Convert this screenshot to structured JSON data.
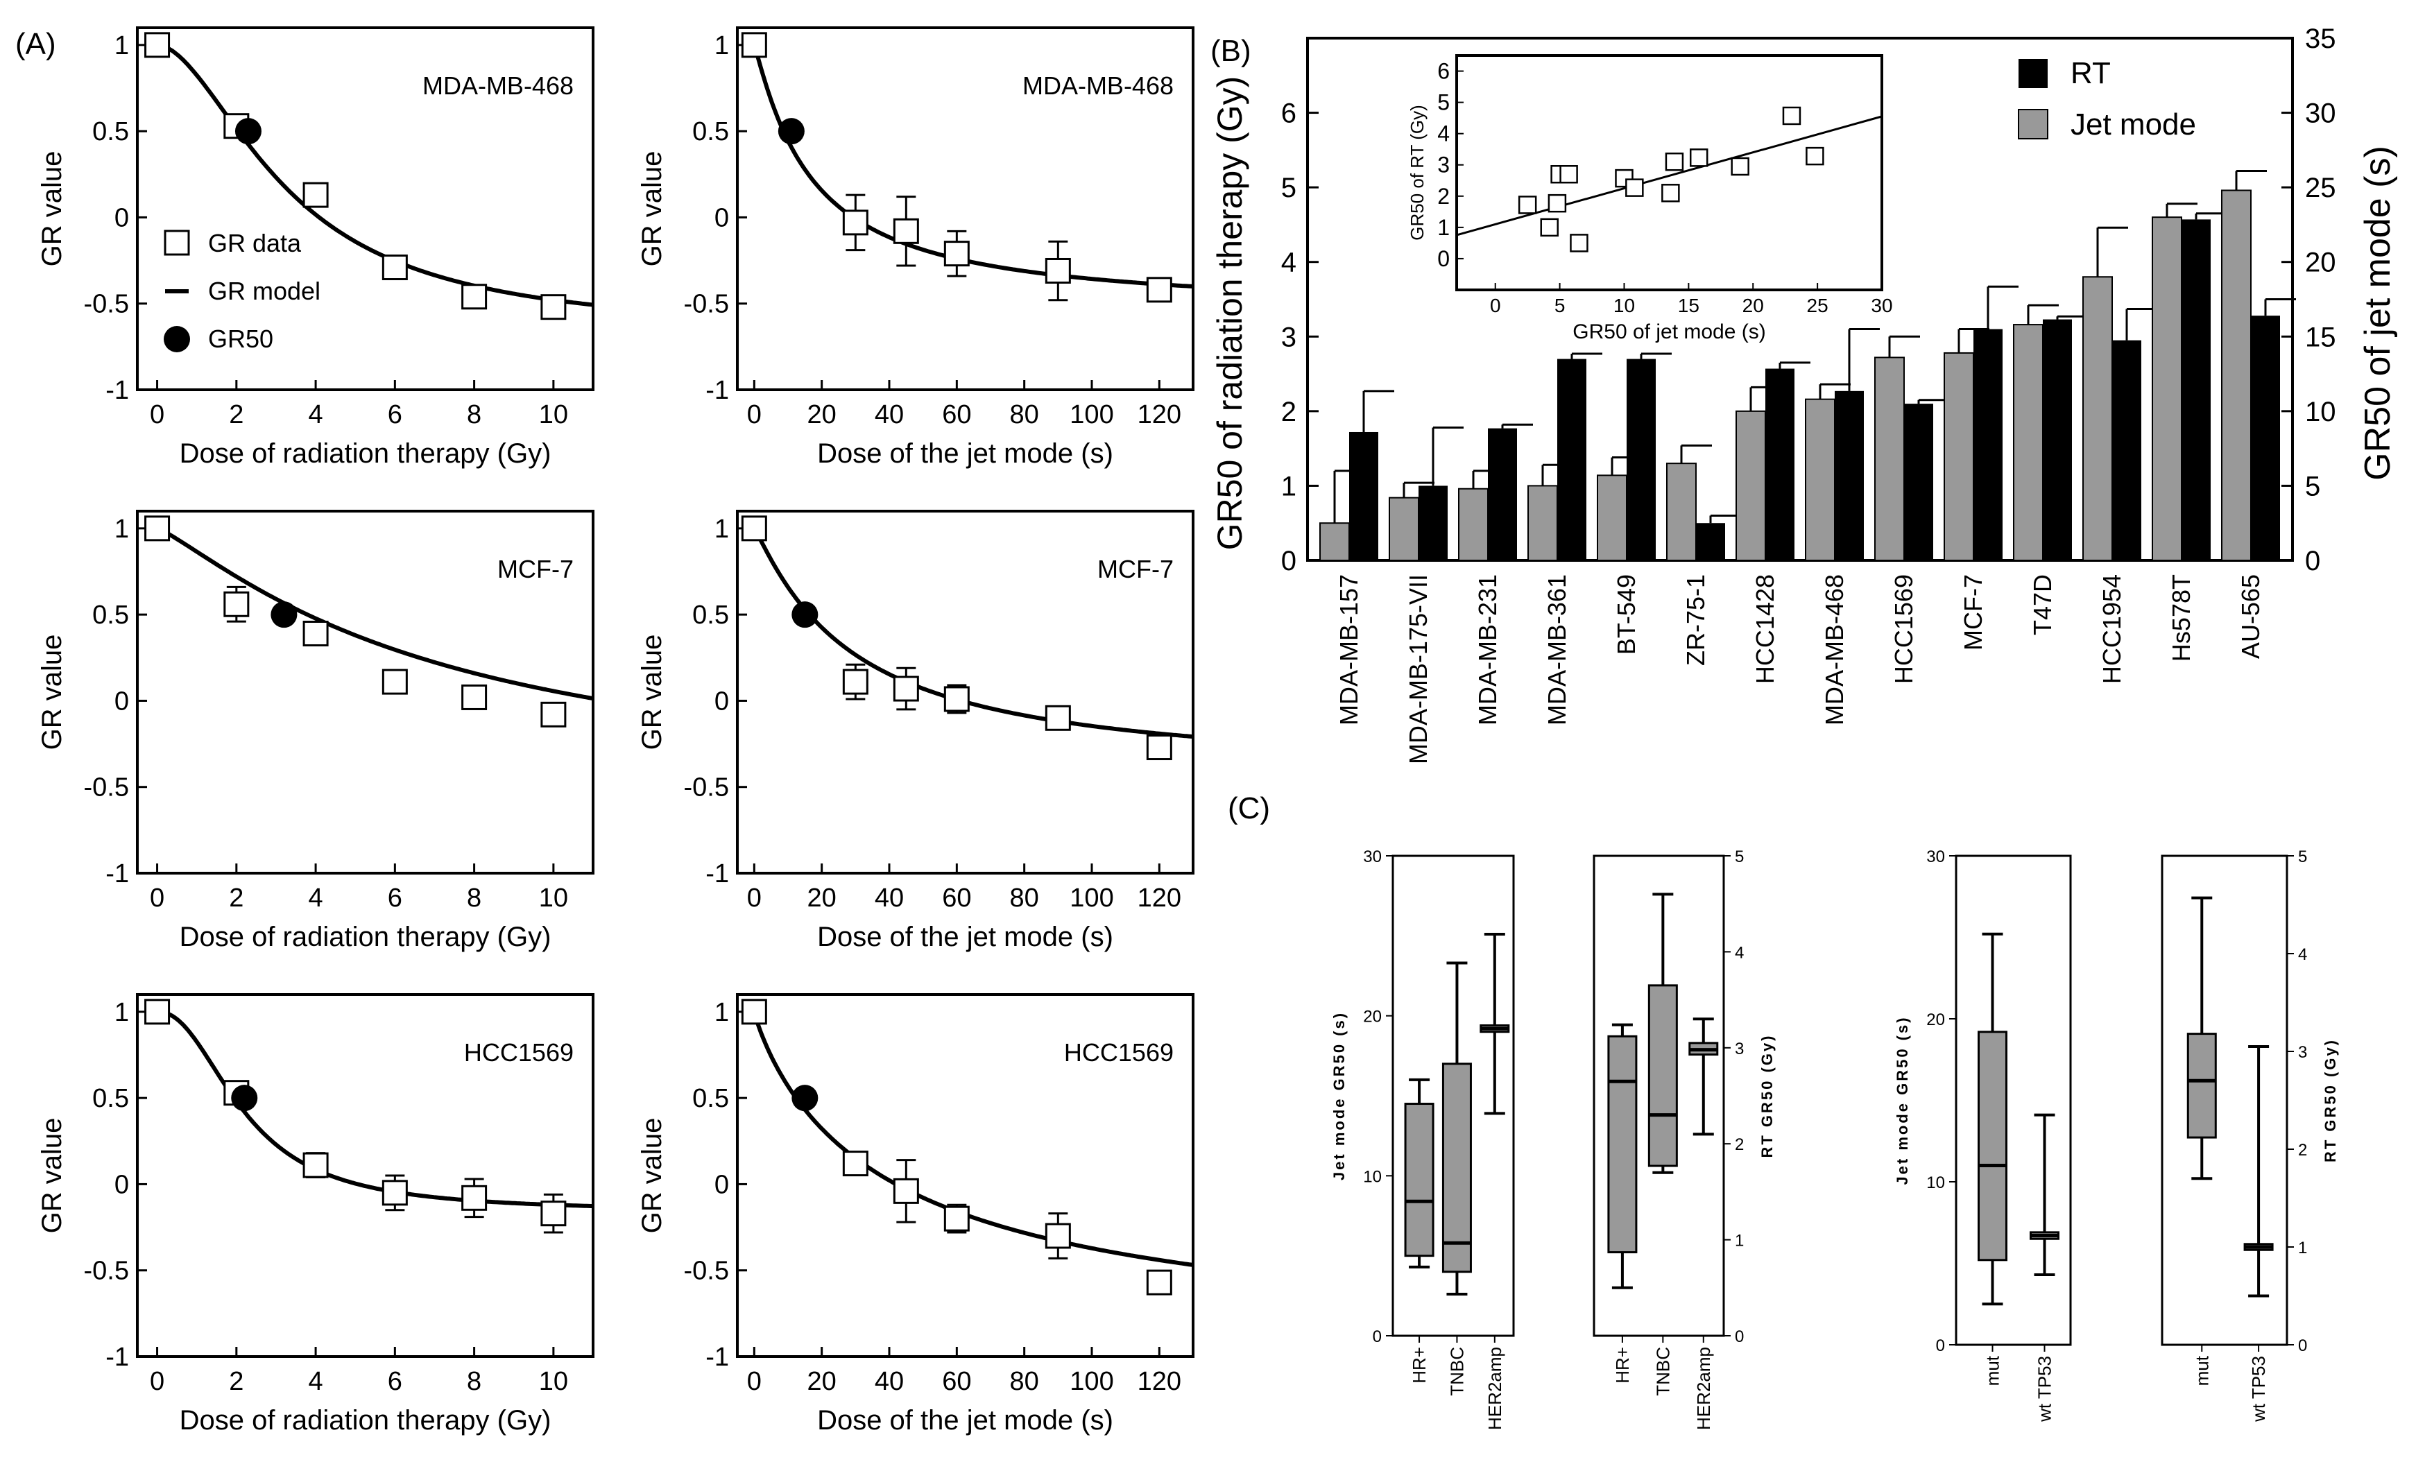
{
  "figure": {
    "panel_labels": [
      "(A)",
      "(B)",
      "(C)"
    ],
    "colors": {
      "blue": "#1f3fe0",
      "green": "#1f9020",
      "orange": "#f08a10",
      "gray": "#999999",
      "black": "#000000"
    }
  },
  "chart_data": [
    {
      "type": "scatter",
      "panel": "A1",
      "annotation": "MDA-MB-468",
      "xlabel": "Dose of radiation therapy (Gy)",
      "ylabel": "GR value",
      "xlim": [
        -0.5,
        11
      ],
      "ylim": [
        -1,
        1.1
      ],
      "xticks": [
        0,
        2,
        4,
        6,
        8,
        10
      ],
      "xtick_labels": [
        "0",
        "2",
        "4",
        "6",
        "8",
        "10"
      ],
      "yticks": [
        -1,
        -0.5,
        0,
        0.5,
        1
      ],
      "ytick_labels": [
        "-1",
        "-0.5",
        "0",
        "0.5",
        "1"
      ],
      "legend": [
        "GR data",
        "GR model",
        "GR50"
      ],
      "points": [
        {
          "x": 0,
          "y": 1.0,
          "err": 0
        },
        {
          "x": 2,
          "y": 0.53,
          "err": 0.06
        },
        {
          "x": 4,
          "y": 0.13,
          "err": 0
        },
        {
          "x": 6,
          "y": -0.29,
          "err": 0
        },
        {
          "x": 8,
          "y": -0.46,
          "err": 0
        },
        {
          "x": 10,
          "y": -0.52,
          "err": 0
        }
      ],
      "gr50": {
        "x": 2.3,
        "y": 0.5
      },
      "curve": {
        "grinf": -0.68,
        "ec50": 3.3,
        "hill": 1.8
      }
    },
    {
      "type": "scatter",
      "panel": "A2",
      "annotation": "MDA-MB-468",
      "xlabel": "Dose of the jet mode (s)",
      "ylabel": "GR value",
      "xlim": [
        -5,
        130
      ],
      "ylim": [
        -1,
        1.1
      ],
      "xticks": [
        0,
        20,
        40,
        60,
        80,
        100,
        120
      ],
      "xtick_labels": [
        "0",
        "20",
        "40",
        "60",
        "80",
        "100",
        "120"
      ],
      "yticks": [
        -1,
        -0.5,
        0,
        0.5,
        1
      ],
      "ytick_labels": [
        "-1",
        "-0.5",
        "0",
        "0.5",
        "1"
      ],
      "points": [
        {
          "x": 0,
          "y": 1.0,
          "err": 0
        },
        {
          "x": 30,
          "y": -0.03,
          "err": 0.16
        },
        {
          "x": 45,
          "y": -0.08,
          "err": 0.2
        },
        {
          "x": 60,
          "y": -0.21,
          "err": 0.13
        },
        {
          "x": 90,
          "y": -0.31,
          "err": 0.17
        },
        {
          "x": 120,
          "y": -0.42,
          "err": 0.06
        }
      ],
      "gr50": {
        "x": 11,
        "y": 0.5
      },
      "curve": {
        "grinf": -0.55,
        "ec50": 17,
        "hill": 1.1
      }
    },
    {
      "type": "scatter",
      "panel": "A3",
      "annotation": "MCF-7",
      "xlabel": "Dose of radiation therapy (Gy)",
      "ylabel": "GR value",
      "xlim": [
        -0.5,
        11
      ],
      "ylim": [
        -1,
        1.1
      ],
      "xticks": [
        0,
        2,
        4,
        6,
        8,
        10
      ],
      "xtick_labels": [
        "0",
        "2",
        "4",
        "6",
        "8",
        "10"
      ],
      "yticks": [
        -1,
        -0.5,
        0,
        0.5,
        1
      ],
      "ytick_labels": [
        "-1",
        "-0.5",
        "0",
        "0.5",
        "1"
      ],
      "points": [
        {
          "x": 0,
          "y": 1.0,
          "err": 0
        },
        {
          "x": 2,
          "y": 0.56,
          "err": 0.1
        },
        {
          "x": 4,
          "y": 0.39,
          "err": 0
        },
        {
          "x": 6,
          "y": 0.11,
          "err": 0
        },
        {
          "x": 8,
          "y": 0.02,
          "err": 0
        },
        {
          "x": 10,
          "y": -0.08,
          "err": 0
        }
      ],
      "gr50": {
        "x": 3.2,
        "y": 0.5
      },
      "curve": {
        "grinf": -0.58,
        "ec50": 7.2,
        "hill": 1.2
      }
    },
    {
      "type": "scatter",
      "panel": "A4",
      "annotation": "MCF-7",
      "xlabel": "Dose of the jet mode (s)",
      "ylabel": "GR value",
      "xlim": [
        -5,
        130
      ],
      "ylim": [
        -1,
        1.1
      ],
      "xticks": [
        0,
        20,
        40,
        60,
        80,
        100,
        120
      ],
      "xtick_labels": [
        "0",
        "20",
        "40",
        "60",
        "80",
        "100",
        "120"
      ],
      "yticks": [
        -1,
        -0.5,
        0,
        0.5,
        1
      ],
      "ytick_labels": [
        "-1",
        "-0.5",
        "0",
        "0.5",
        "1"
      ],
      "points": [
        {
          "x": 0,
          "y": 1.0,
          "err": 0
        },
        {
          "x": 30,
          "y": 0.11,
          "err": 0.1
        },
        {
          "x": 45,
          "y": 0.07,
          "err": 0.12
        },
        {
          "x": 60,
          "y": 0.01,
          "err": 0.08
        },
        {
          "x": 90,
          "y": -0.1,
          "err": 0.05
        },
        {
          "x": 120,
          "y": -0.27,
          "err": 0.03
        }
      ],
      "gr50": {
        "x": 15,
        "y": 0.5
      },
      "curve": {
        "grinf": -0.44,
        "ec50": 29,
        "hill": 1.1
      }
    },
    {
      "type": "scatter",
      "panel": "A5",
      "annotation": "HCC1569",
      "xlabel": "Dose of radiation therapy (Gy)",
      "ylabel": "GR value",
      "xlim": [
        -0.5,
        11
      ],
      "ylim": [
        -1,
        1.1
      ],
      "xticks": [
        0,
        2,
        4,
        6,
        8,
        10
      ],
      "xtick_labels": [
        "0",
        "2",
        "4",
        "6",
        "8",
        "10"
      ],
      "yticks": [
        -1,
        -0.5,
        0,
        0.5,
        1
      ],
      "ytick_labels": [
        "-1",
        "-0.5",
        "0",
        "0.5",
        "1"
      ],
      "points": [
        {
          "x": 0,
          "y": 1.0,
          "err": 0
        },
        {
          "x": 2,
          "y": 0.53,
          "err": 0.06
        },
        {
          "x": 4,
          "y": 0.11,
          "err": 0.07
        },
        {
          "x": 6,
          "y": -0.05,
          "err": 0.1
        },
        {
          "x": 8,
          "y": -0.08,
          "err": 0.11
        },
        {
          "x": 10,
          "y": -0.17,
          "err": 0.11
        }
      ],
      "gr50": {
        "x": 2.2,
        "y": 0.5
      },
      "curve": {
        "grinf": -0.16,
        "ec50": 2.2,
        "hill": 2.2
      }
    },
    {
      "type": "scatter",
      "panel": "A6",
      "annotation": "HCC1569",
      "xlabel": "Dose of the jet mode (s)",
      "ylabel": "GR value",
      "xlim": [
        -5,
        130
      ],
      "ylim": [
        -1,
        1.1
      ],
      "xticks": [
        0,
        20,
        40,
        60,
        80,
        100,
        120
      ],
      "xtick_labels": [
        "0",
        "20",
        "40",
        "60",
        "80",
        "100",
        "120"
      ],
      "yticks": [
        -1,
        -0.5,
        0,
        0.5,
        1
      ],
      "ytick_labels": [
        "-1",
        "-0.5",
        "0",
        "0.5",
        "1"
      ],
      "points": [
        {
          "x": 0,
          "y": 1.0,
          "err": 0
        },
        {
          "x": 30,
          "y": 0.12,
          "err": 0.04
        },
        {
          "x": 45,
          "y": -0.04,
          "err": 0.18
        },
        {
          "x": 60,
          "y": -0.2,
          "err": 0.08
        },
        {
          "x": 90,
          "y": -0.3,
          "err": 0.13
        },
        {
          "x": 120,
          "y": -0.57,
          "err": 0.04
        }
      ],
      "gr50": {
        "x": 15,
        "y": 0.5
      },
      "curve": {
        "grinf": -1.0,
        "ec50": 42,
        "hill": 0.9
      }
    },
    {
      "type": "bar",
      "panel": "B",
      "ylabel": "GR50 of radiation therapy (Gy)",
      "y2label": "GR50 of jet mode (s)",
      "ylim": [
        0,
        7
      ],
      "y2lim": [
        0,
        35
      ],
      "yticks": [
        0,
        1,
        2,
        3,
        4,
        5,
        6
      ],
      "ytick_labels": [
        "0",
        "1",
        "2",
        "3",
        "4",
        "5",
        "6"
      ],
      "y2ticks": [
        0,
        5,
        10,
        15,
        20,
        25,
        30,
        35
      ],
      "y2tick_labels": [
        "0",
        "5",
        "10",
        "15",
        "20",
        "25",
        "30",
        "35"
      ],
      "legend": [
        "RT",
        "Jet mode"
      ],
      "categories": [
        "MDA-MB-157",
        "MDA-MB-175-VII",
        "MDA-MB-231",
        "MDA-MB-361",
        "BT-549",
        "ZR-75-1",
        "HCC1428",
        "MDA-MB-468",
        "HCC1569",
        "MCF-7",
        "T47D",
        "HCC1954",
        "Hs578T",
        "AU-565"
      ],
      "category_colors": [
        "blue",
        "green",
        "blue",
        "green",
        "blue",
        "green",
        "green",
        "orange",
        "orange",
        "green",
        "green",
        "orange",
        "blue",
        "green"
      ],
      "series": [
        {
          "name": "Jet mode",
          "values": [
            2.5,
            4.2,
            4.8,
            5.0,
            5.7,
            6.5,
            10.0,
            10.8,
            13.6,
            13.9,
            15.8,
            19.0,
            23.0,
            24.8
          ],
          "errors": [
            3.5,
            1.0,
            1.2,
            1.4,
            1.2,
            1.2,
            1.6,
            1.0,
            1.4,
            1.6,
            1.3,
            3.3,
            0.9,
            1.3
          ]
        },
        {
          "name": "RT",
          "values": [
            1.72,
            1.0,
            1.77,
            2.7,
            2.7,
            0.5,
            2.57,
            2.27,
            2.1,
            3.1,
            3.23,
            2.95,
            4.57,
            3.28
          ],
          "errors": [
            0.55,
            0.78,
            0.05,
            0.07,
            0.07,
            0.1,
            0.08,
            0.83,
            0.05,
            0.57,
            0.04,
            0.42,
            0.08,
            0.22
          ]
        }
      ],
      "inset": {
        "type": "scatter",
        "xlabel": "GR50 of jet mode (s)",
        "ylabel": "GR50 of RT (Gy)",
        "xlim": [
          -3,
          30
        ],
        "ylim": [
          -1,
          6.5
        ],
        "xticks": [
          0,
          5,
          10,
          15,
          20,
          25,
          30
        ],
        "xtick_labels": [
          "0",
          "5",
          "10",
          "15",
          "20",
          "25",
          "30"
        ],
        "yticks": [
          0,
          1,
          2,
          3,
          4,
          5,
          6
        ],
        "ytick_labels": [
          "0",
          "1",
          "2",
          "3",
          "4",
          "5",
          "6"
        ],
        "points": [
          {
            "x": 2.5,
            "y": 1.72
          },
          {
            "x": 4.2,
            "y": 1.0
          },
          {
            "x": 4.8,
            "y": 1.77
          },
          {
            "x": 5.0,
            "y": 2.7
          },
          {
            "x": 5.7,
            "y": 2.7
          },
          {
            "x": 6.5,
            "y": 0.5
          },
          {
            "x": 10.0,
            "y": 2.57
          },
          {
            "x": 10.8,
            "y": 2.27
          },
          {
            "x": 13.6,
            "y": 2.1
          },
          {
            "x": 13.9,
            "y": 3.1
          },
          {
            "x": 15.8,
            "y": 3.23
          },
          {
            "x": 19.0,
            "y": 2.95
          },
          {
            "x": 23.0,
            "y": 4.57
          },
          {
            "x": 24.8,
            "y": 3.28
          }
        ],
        "fit": {
          "slope": 0.115,
          "intercept": 1.1
        }
      }
    },
    {
      "type": "box",
      "panel": "C1",
      "ylabel": "Jet mode GR50 (s)",
      "ylim": [
        0,
        30
      ],
      "yticks": [
        0,
        10,
        20,
        30
      ],
      "ytick_labels": [
        "0",
        "10",
        "20",
        "30"
      ],
      "categories": [
        "HR+",
        "TNBC",
        "HER2amp"
      ],
      "boxes": [
        {
          "min": 4.3,
          "q1": 5.0,
          "median": 8.4,
          "q3": 14.5,
          "max": 16.0
        },
        {
          "min": 2.6,
          "q1": 4.0,
          "median": 5.8,
          "q3": 17.0,
          "max": 23.3
        },
        {
          "min": 13.9,
          "q1": 19.0,
          "median": 19.2,
          "q3": 19.4,
          "max": 25.1
        }
      ]
    },
    {
      "type": "box",
      "panel": "C2",
      "ylabel": "RT GR50 (Gy)",
      "ylim": [
        0,
        5
      ],
      "yticks": [
        0,
        1,
        2,
        3,
        4,
        5
      ],
      "ytick_labels": [
        "0",
        "1",
        "2",
        "3",
        "4",
        "5"
      ],
      "categories": [
        "HR+",
        "TNBC",
        "HER2amp"
      ],
      "boxes": [
        {
          "min": 0.5,
          "q1": 0.87,
          "median": 2.65,
          "q3": 3.12,
          "max": 3.24
        },
        {
          "min": 1.7,
          "q1": 1.77,
          "median": 2.3,
          "q3": 3.65,
          "max": 4.6
        },
        {
          "min": 2.1,
          "q1": 2.93,
          "median": 2.98,
          "q3": 3.05,
          "max": 3.3
        }
      ]
    },
    {
      "type": "box",
      "panel": "C3",
      "ylabel": "Jet mode GR50 (s)",
      "ylim": [
        0,
        30
      ],
      "yticks": [
        0,
        10,
        20,
        30
      ],
      "ytick_labels": [
        "0",
        "10",
        "20",
        "30"
      ],
      "categories": [
        "mut",
        "wt TP53"
      ],
      "boxes": [
        {
          "min": 2.5,
          "q1": 5.2,
          "median": 11.0,
          "q3": 19.2,
          "max": 25.2
        },
        {
          "min": 4.3,
          "q1": 6.5,
          "median": 6.7,
          "q3": 6.9,
          "max": 14.1
        }
      ]
    },
    {
      "type": "box",
      "panel": "C4",
      "ylabel": "RT GR50 (Gy)",
      "ylim": [
        0,
        5
      ],
      "yticks": [
        0,
        1,
        2,
        3,
        4,
        5
      ],
      "ytick_labels": [
        "0",
        "1",
        "2",
        "3",
        "4",
        "5"
      ],
      "categories": [
        "mut",
        "wt TP53"
      ],
      "boxes": [
        {
          "min": 1.7,
          "q1": 2.12,
          "median": 2.7,
          "q3": 3.18,
          "max": 4.57
        },
        {
          "min": 0.5,
          "q1": 0.97,
          "median": 1.0,
          "q3": 1.03,
          "max": 3.05
        }
      ]
    }
  ]
}
